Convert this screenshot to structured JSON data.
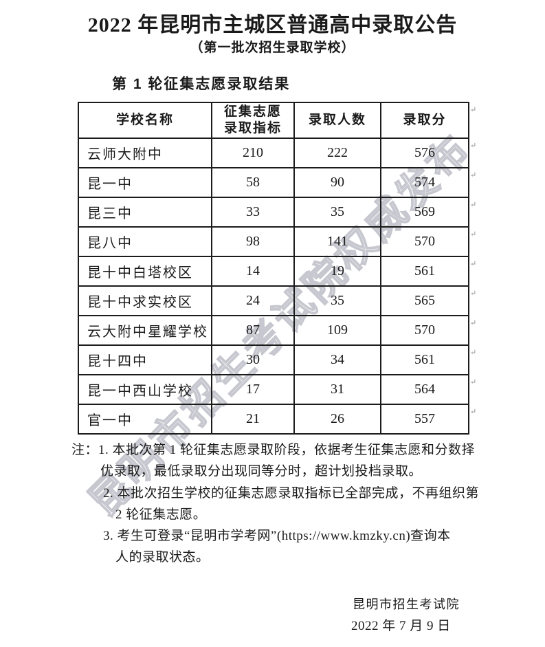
{
  "document": {
    "title": "2022 年昆明市主城区普通高中录取公告",
    "subtitle": "（第一批次招生录取学校）",
    "section_heading": "第 1 轮征集志愿录取结果"
  },
  "table": {
    "col_school": "学校名称",
    "col_quota_line1": "征集志愿",
    "col_quota_line2": "录取指标",
    "col_admitted": "录取人数",
    "col_score": "录取分",
    "rows": [
      {
        "school": "云师大附中",
        "quota": "210",
        "admitted": "222",
        "score": "576"
      },
      {
        "school": "昆一中",
        "quota": "58",
        "admitted": "90",
        "score": "574"
      },
      {
        "school": "昆三中",
        "quota": "33",
        "admitted": "35",
        "score": "569"
      },
      {
        "school": "昆八中",
        "quota": "98",
        "admitted": "141",
        "score": "570"
      },
      {
        "school": "昆十中白塔校区",
        "quota": "14",
        "admitted": "19",
        "score": "561"
      },
      {
        "school": "昆十中求实校区",
        "quota": "24",
        "admitted": "35",
        "score": "565"
      },
      {
        "school": "云大附中星耀学校",
        "quota": "87",
        "admitted": "109",
        "score": "570"
      },
      {
        "school": "昆十四中",
        "quota": "30",
        "admitted": "34",
        "score": "561"
      },
      {
        "school": "昆一中西山学校",
        "quota": "17",
        "admitted": "31",
        "score": "564"
      },
      {
        "school": "官一中",
        "quota": "21",
        "admitted": "26",
        "score": "557"
      }
    ]
  },
  "notes": {
    "lines": [
      "注：1. 本批次第 1 轮征集志愿录取阶段，依据考生征集志愿和分数择",
      "优录取，最低录取分出现同等分时，超计划投档录取。",
      "2. 本批次招生学校的征集志愿录取指标已全部完成，不再组织第",
      "2 轮征集志愿。",
      "3. 考生可登录“昆明市学考网”(https://www.kmzky.cn)查询本",
      "人的录取状态。"
    ]
  },
  "signature": {
    "org": "昆明市招生考试院",
    "date": "2022 年 7 月 9 日"
  },
  "watermark": {
    "text": "昆明市招生考试院权威发布",
    "color": "#c7c7d0"
  },
  "paragraph_mark_glyph": "↵"
}
